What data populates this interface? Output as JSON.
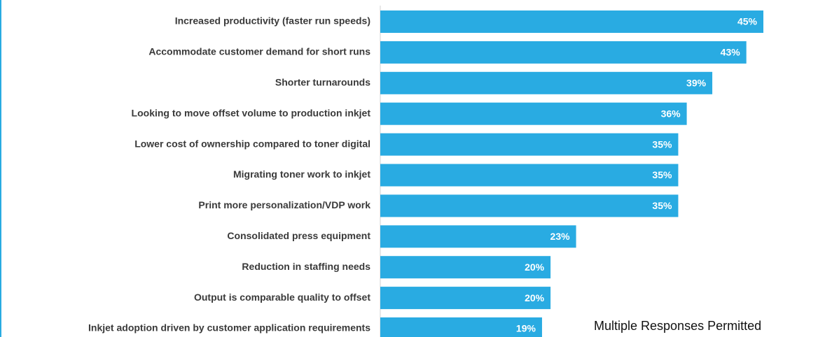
{
  "chart_data": {
    "type": "bar",
    "orientation": "horizontal",
    "categories": [
      "Increased productivity (faster run speeds)",
      "Accommodate customer demand for short runs",
      "Shorter turnarounds",
      "Looking to move offset volume to production inkjet",
      "Lower cost of ownership compared to toner digital",
      "Migrating toner work to inkjet",
      "Print more personalization/VDP work",
      "Consolidated press equipment",
      "Reduction in staffing needs",
      "Output is comparable quality to offset",
      "Inkjet adoption driven by customer application requirements"
    ],
    "values": [
      45,
      43,
      39,
      36,
      35,
      35,
      35,
      23,
      20,
      20,
      19
    ],
    "value_labels": [
      "45%",
      "43%",
      "39%",
      "36%",
      "35%",
      "35%",
      "35%",
      "23%",
      "20%",
      "20%",
      "19%"
    ],
    "color": "#29abe2",
    "annotation": "Multiple Responses Permitted"
  }
}
